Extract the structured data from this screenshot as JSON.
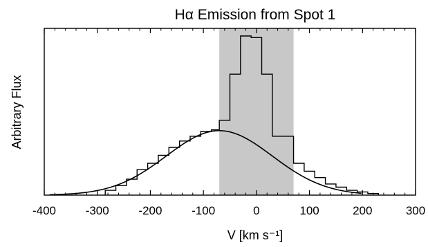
{
  "chart_data": {
    "type": "line",
    "title": "Hα Emission from Spot 1",
    "xlabel": "V [km s⁻¹]",
    "ylabel": "Arbitrary Flux",
    "xlim": [
      -400,
      300
    ],
    "ylim": [
      0,
      1
    ],
    "grid": false,
    "legend": "none",
    "x_ticks": [
      -400,
      -300,
      -200,
      -100,
      0,
      100,
      200,
      300
    ],
    "x_tick_labels": [
      "-400",
      "-300",
      "-200",
      "-100",
      "0",
      "100",
      "200",
      "300"
    ],
    "shaded_band": {
      "x_start": -70,
      "x_end": 70,
      "color": "#c8c8c8"
    },
    "series": [
      {
        "kind": "histogram",
        "color": "#000000",
        "bin_edges": [
          -285,
          -265,
          -245,
          -225,
          -205,
          -185,
          -165,
          -145,
          -125,
          -105,
          -85,
          -70,
          -50,
          -30,
          -10,
          10,
          30,
          50,
          70,
          90,
          110,
          130,
          150,
          170,
          190,
          210,
          230
        ],
        "values": [
          0.03,
          0.06,
          0.1,
          0.16,
          0.2,
          0.25,
          0.3,
          0.34,
          0.37,
          0.4,
          0.41,
          0.47,
          0.76,
          1.0,
          0.99,
          0.76,
          0.37,
          0.37,
          0.2,
          0.15,
          0.11,
          0.07,
          0.05,
          0.03,
          0.02,
          0.01
        ]
      },
      {
        "kind": "gaussian-fit",
        "color": "#000000",
        "center": -70,
        "sigma": 100,
        "peak": 0.405
      }
    ]
  }
}
